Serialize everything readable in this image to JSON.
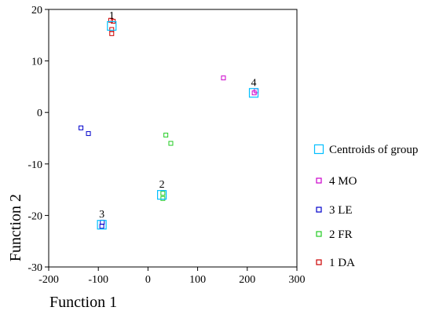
{
  "chart_data": {
    "type": "scatter",
    "xlabel": "Function 1",
    "ylabel": "Function 2",
    "xlim": [
      -200,
      300
    ],
    "ylim": [
      -30,
      20
    ],
    "xticks": [
      -200,
      -100,
      0,
      100,
      200,
      300
    ],
    "yticks": [
      -30,
      -20,
      -10,
      0,
      10,
      20
    ],
    "grid": false,
    "legend_position": "right",
    "series": [
      {
        "name": "Centroids of group",
        "color": "#00bfff",
        "marker": "square-large",
        "points": [
          {
            "x": -73,
            "y": 16.8,
            "label": "1"
          },
          {
            "x": 28,
            "y": -16.0,
            "label": "2"
          },
          {
            "x": -93,
            "y": -21.8,
            "label": "3"
          },
          {
            "x": 213,
            "y": 3.8,
            "label": "4"
          }
        ]
      },
      {
        "name": "4 MO",
        "color": "#cc00cc",
        "marker": "square",
        "points": [
          {
            "x": 152,
            "y": 6.7
          },
          {
            "x": 218,
            "y": 4.2
          },
          {
            "x": 214,
            "y": 3.8
          }
        ]
      },
      {
        "name": "3 LE",
        "color": "#0000cc",
        "marker": "square",
        "points": [
          {
            "x": -135,
            "y": -3.0
          },
          {
            "x": -120,
            "y": -4.1
          },
          {
            "x": -92,
            "y": -21.3
          },
          {
            "x": -93,
            "y": -22.1
          }
        ]
      },
      {
        "name": "2 FR",
        "color": "#22cc22",
        "marker": "square",
        "points": [
          {
            "x": 36,
            "y": -4.4
          },
          {
            "x": 46,
            "y": -6.0
          },
          {
            "x": 30,
            "y": -15.7
          },
          {
            "x": 30,
            "y": -16.7
          }
        ]
      },
      {
        "name": "1 DA",
        "color": "#cc0000",
        "marker": "square",
        "points": [
          {
            "x": -75,
            "y": 17.9
          },
          {
            "x": -70,
            "y": 17.7
          },
          {
            "x": -73,
            "y": 16.1
          },
          {
            "x": -73,
            "y": 15.3
          }
        ]
      }
    ]
  }
}
